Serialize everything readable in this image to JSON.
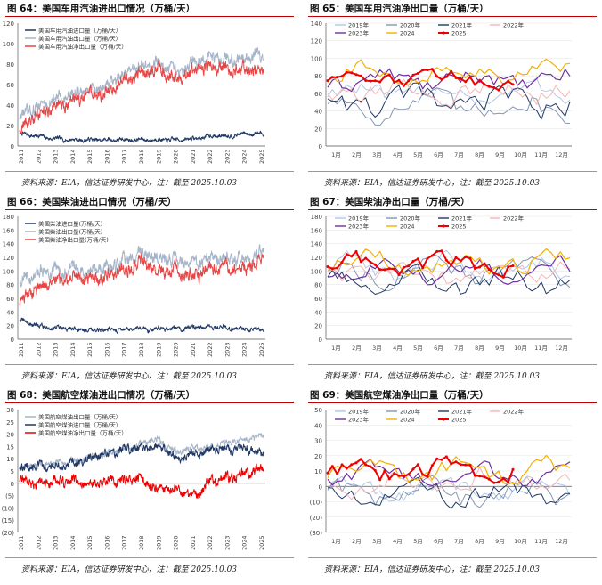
{
  "panels": [
    {
      "id": "p64",
      "title": "图 64：美国车用汽油进出口情况（万桶/天）",
      "source": "资料来源：EIA，信达证券研发中心，注：截至 2025.10.03",
      "colors": {
        "accent": "#c00000"
      }
    },
    {
      "id": "p65",
      "title": "图 65：美国车用汽油净出口量（万桶/天）",
      "source": "资料来源：EIA，信达证券研发中心，注：截至 2025.10.03"
    },
    {
      "id": "p66",
      "title": "图 66：美国柴油进出口情况（万桶/天）",
      "source": "资料来源：EIA，信达证券研发中心，注：截至 2025.10.03"
    },
    {
      "id": "p67",
      "title": "图 67：美国柴油净出口量（万桶/天）",
      "source": "资料来源：EIA，信达证券研发中心，注：截至 2025.10.03"
    },
    {
      "id": "p68",
      "title": "图 68：美国航空煤油进出口情况（万桶/天）",
      "source": "资料来源：EIA，信达证券研发中心，注：截至 2025.10.03"
    },
    {
      "id": "p69",
      "title": "图 69：美国航空煤油净出口量（万桶/天）",
      "source": "资料来源：EIA，信达证券研发中心，注：截至 2025.10.03"
    }
  ],
  "chart_data": [
    {
      "panel": "p64",
      "type": "line",
      "x_ticks": [
        "2011",
        "2012",
        "2013",
        "2014",
        "2015",
        "2016",
        "2017",
        "2018",
        "2019",
        "2020",
        "2021",
        "2022",
        "2023",
        "2024",
        "2025"
      ],
      "ylim": [
        0,
        120
      ],
      "y_ticks": [
        0,
        20,
        40,
        60,
        80,
        100,
        120
      ],
      "y_tick_labels": [
        "0",
        "20",
        "40",
        "60",
        "80",
        "100",
        "120"
      ],
      "legend_position": "top-left",
      "series": [
        {
          "name": "美国车用汽油进口量（万桶/天）",
          "color": "#203864",
          "base": [
            12,
            10,
            7,
            6,
            6,
            6,
            6,
            6,
            6,
            6,
            7,
            10,
            10,
            12,
            12
          ],
          "noise": 3
        },
        {
          "name": "美国车用汽油出口量（万桶/天）",
          "color": "#a6b4c8",
          "base": [
            28,
            38,
            45,
            50,
            55,
            58,
            70,
            78,
            80,
            70,
            80,
            88,
            85,
            86,
            88
          ],
          "noise": 9
        },
        {
          "name": "美国车用汽油净出口量（万桶/天）",
          "color": "#e84646",
          "base": [
            16,
            30,
            38,
            44,
            49,
            52,
            64,
            72,
            74,
            64,
            73,
            78,
            75,
            74,
            76
          ],
          "noise": 9
        }
      ]
    },
    {
      "panel": "p65",
      "type": "line",
      "x_ticks": [
        "1月",
        "2月",
        "3月",
        "4月",
        "5月",
        "6月",
        "7月",
        "8月",
        "9月",
        "10月",
        "11月",
        "12月"
      ],
      "ylim": [
        0,
        140
      ],
      "y_ticks": [
        0,
        20,
        40,
        60,
        80,
        100,
        120,
        140
      ],
      "y_tick_labels": [
        "0",
        "20",
        "40",
        "60",
        "80",
        "100",
        "120",
        "140"
      ],
      "legend_position": "top",
      "series": [
        {
          "name": "2019年",
          "color": "#b4c7e7",
          "base": 60,
          "amp": 15,
          "weeks": 52,
          "width": 1
        },
        {
          "name": "2020年",
          "color": "#8496b0",
          "base": 45,
          "amp": 18,
          "weeks": 52,
          "width": 1
        },
        {
          "name": "2021年",
          "color": "#203864",
          "base": 50,
          "amp": 18,
          "weeks": 52,
          "width": 1
        },
        {
          "name": "2022年",
          "color": "#f4b6b6",
          "base": 62,
          "amp": 15,
          "weeks": 52,
          "width": 1
        },
        {
          "name": "2023年",
          "color": "#7030a0",
          "base": 75,
          "amp": 14,
          "weeks": 52,
          "width": 1.2
        },
        {
          "name": "2024",
          "color": "#f2b000",
          "base": 82,
          "amp": 14,
          "weeks": 52,
          "width": 1.2
        },
        {
          "name": "2025",
          "color": "#ee0000",
          "base": 78,
          "amp": 11,
          "weeks": 40,
          "width": 2,
          "markers": true
        }
      ]
    },
    {
      "panel": "p66",
      "type": "line",
      "x_ticks": [
        "2011",
        "2012",
        "2013",
        "2014",
        "2015",
        "2016",
        "2017",
        "2018",
        "2019",
        "2020",
        "2021",
        "2022",
        "2023",
        "2024",
        "2025"
      ],
      "ylim": [
        0,
        180
      ],
      "y_ticks": [
        0,
        20,
        40,
        60,
        80,
        100,
        120,
        140,
        160,
        180
      ],
      "y_tick_labels": [
        "0",
        "20",
        "40",
        "60",
        "80",
        "100",
        "120",
        "140",
        "160",
        "180"
      ],
      "legend_position": "top-left",
      "series": [
        {
          "name": "美国柴油进口量(万桶/天)",
          "color": "#203864",
          "base": [
            28,
            20,
            16,
            15,
            14,
            14,
            14,
            14,
            16,
            15,
            18,
            17,
            17,
            15,
            14
          ],
          "noise": 5
        },
        {
          "name": "美国柴油出口量(万桶/天)",
          "color": "#a6b4c8",
          "base": [
            85,
            95,
            100,
            105,
            102,
            105,
            115,
            125,
            118,
            115,
            112,
            118,
            120,
            118,
            128
          ],
          "noise": 14
        },
        {
          "name": "美国柴油净出口量(万桶/天)",
          "color": "#e84646",
          "base": [
            55,
            75,
            85,
            90,
            88,
            92,
            100,
            112,
            102,
            100,
            94,
            102,
            104,
            104,
            114
          ],
          "noise": 14
        }
      ]
    },
    {
      "panel": "p67",
      "type": "line",
      "x_ticks": [
        "1月",
        "2月",
        "3月",
        "4月",
        "5月",
        "6月",
        "7月",
        "8月",
        "9月",
        "10月",
        "11月",
        "12月"
      ],
      "ylim": [
        0,
        180
      ],
      "y_ticks": [
        0,
        20,
        40,
        60,
        80,
        100,
        120,
        140,
        160,
        180
      ],
      "y_tick_labels": [
        "0",
        "20",
        "40",
        "60",
        "80",
        "100",
        "120",
        "140",
        "160",
        "180"
      ],
      "legend_position": "top",
      "series": [
        {
          "name": "2019年",
          "color": "#b4c7e7",
          "base": 105,
          "amp": 20,
          "weeks": 52,
          "width": 1
        },
        {
          "name": "2020年",
          "color": "#8496b0",
          "base": 100,
          "amp": 20,
          "weeks": 52,
          "width": 1
        },
        {
          "name": "2021年",
          "color": "#203864",
          "base": 85,
          "amp": 20,
          "weeks": 52,
          "width": 1
        },
        {
          "name": "2022年",
          "color": "#f4b6b6",
          "base": 100,
          "amp": 20,
          "weeks": 52,
          "width": 1
        },
        {
          "name": "2023年",
          "color": "#7030a0",
          "base": 100,
          "amp": 18,
          "weeks": 52,
          "width": 1.2
        },
        {
          "name": "2024",
          "color": "#f2b000",
          "base": 112,
          "amp": 18,
          "weeks": 52,
          "width": 1.2
        },
        {
          "name": "2025",
          "color": "#ee0000",
          "base": 110,
          "amp": 16,
          "weeks": 40,
          "width": 2,
          "markers": true
        }
      ]
    },
    {
      "panel": "p68",
      "type": "line",
      "x_ticks": [
        "2011",
        "2012",
        "2013",
        "2014",
        "2015",
        "2016",
        "2017",
        "2018",
        "2019",
        "2020",
        "2021",
        "2022",
        "2023",
        "2024",
        "2025"
      ],
      "ylim": [
        -20,
        30
      ],
      "y_ticks": [
        -20,
        -15,
        -10,
        -5,
        0,
        5,
        10,
        15,
        20,
        25,
        30
      ],
      "y_tick_labels": [
        "(20)",
        "(15)",
        "(10)",
        "(5)",
        "0",
        "5",
        "10",
        "15",
        "20",
        "25",
        "30"
      ],
      "legend_position": "top-left",
      "series": [
        {
          "name": "美国航空煤油出口量（万桶/天）",
          "color": "#a6b4c8",
          "base": [
            6,
            7,
            8,
            9,
            10,
            12,
            14,
            16,
            18,
            13,
            14,
            15,
            16,
            18,
            20
          ],
          "noise": 2
        },
        {
          "name": "美国航空煤油进口量（万桶/天）",
          "color": "#203864",
          "base": [
            6,
            7,
            7,
            8,
            10,
            12,
            14,
            14,
            16,
            10,
            12,
            14,
            14,
            14,
            12
          ],
          "noise": 2.5
        },
        {
          "name": "美国航空煤油净出口量（万桶/天）",
          "color": "#ee0000",
          "base": [
            1,
            0,
            1,
            1,
            0,
            1,
            1,
            2,
            -3,
            -2,
            -6,
            1,
            2,
            4,
            6
          ],
          "noise": 3
        }
      ]
    },
    {
      "panel": "p69",
      "type": "line",
      "x_ticks": [
        "1月",
        "2月",
        "3月",
        "4月",
        "5月",
        "6月",
        "7月",
        "8月",
        "9月",
        "10月",
        "11月",
        "12月"
      ],
      "ylim": [
        -30,
        50
      ],
      "y_ticks": [
        -30,
        -20,
        -10,
        0,
        10,
        20,
        30,
        40,
        50
      ],
      "y_tick_labels": [
        "(30)",
        "(20)",
        "(10)",
        "0",
        "10",
        "20",
        "30",
        "40",
        "50"
      ],
      "legend_position": "top",
      "series": [
        {
          "name": "2019年",
          "color": "#b4c7e7",
          "base": -2,
          "amp": 8,
          "weeks": 52,
          "width": 1
        },
        {
          "name": "2020年",
          "color": "#8496b0",
          "base": -5,
          "amp": 9,
          "weeks": 52,
          "width": 1
        },
        {
          "name": "2021年",
          "color": "#203864",
          "base": -4,
          "amp": 8,
          "weeks": 52,
          "width": 1
        },
        {
          "name": "2022年",
          "color": "#f4b6b6",
          "base": 4,
          "amp": 10,
          "weeks": 52,
          "width": 1
        },
        {
          "name": "2023年",
          "color": "#7030a0",
          "base": 8,
          "amp": 8,
          "weeks": 52,
          "width": 1.2
        },
        {
          "name": "2024",
          "color": "#f2b000",
          "base": 10,
          "amp": 9,
          "weeks": 52,
          "width": 1.2
        },
        {
          "name": "2025",
          "color": "#ee0000",
          "base": 10,
          "amp": 9,
          "weeks": 40,
          "width": 2,
          "markers": true
        }
      ]
    }
  ]
}
